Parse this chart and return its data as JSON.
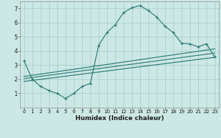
{
  "xlabel": "Humidex (Indice chaleur)",
  "xlim": [
    -0.5,
    23.5
  ],
  "ylim": [
    0,
    7.5
  ],
  "yticks": [
    1,
    2,
    3,
    4,
    5,
    6,
    7
  ],
  "xticks": [
    0,
    1,
    2,
    3,
    4,
    5,
    6,
    7,
    8,
    9,
    10,
    11,
    12,
    13,
    14,
    15,
    16,
    17,
    18,
    19,
    20,
    21,
    22,
    23
  ],
  "bg_color": "#cce8e4",
  "line_color": "#2d7d78",
  "grid_color": "#aacfcc",
  "line1_x": [
    0,
    1,
    2,
    3,
    4,
    5,
    6,
    7,
    8,
    9,
    10,
    11,
    12,
    13,
    14,
    15,
    16,
    17,
    18,
    19,
    20,
    21,
    22,
    23
  ],
  "line1_y": [
    3.3,
    2.0,
    1.5,
    1.2,
    1.0,
    0.65,
    1.0,
    1.5,
    1.7,
    4.4,
    5.3,
    5.85,
    6.7,
    7.05,
    7.2,
    6.85,
    6.4,
    5.75,
    5.3,
    4.55,
    4.5,
    4.3,
    4.5,
    3.6
  ],
  "line2_x": [
    0,
    23
  ],
  "line2_y": [
    2.2,
    4.15
  ],
  "line3_x": [
    0,
    23
  ],
  "line3_y": [
    1.85,
    3.55
  ],
  "line4_x": [
    0,
    23
  ],
  "line4_y": [
    2.05,
    3.85
  ]
}
